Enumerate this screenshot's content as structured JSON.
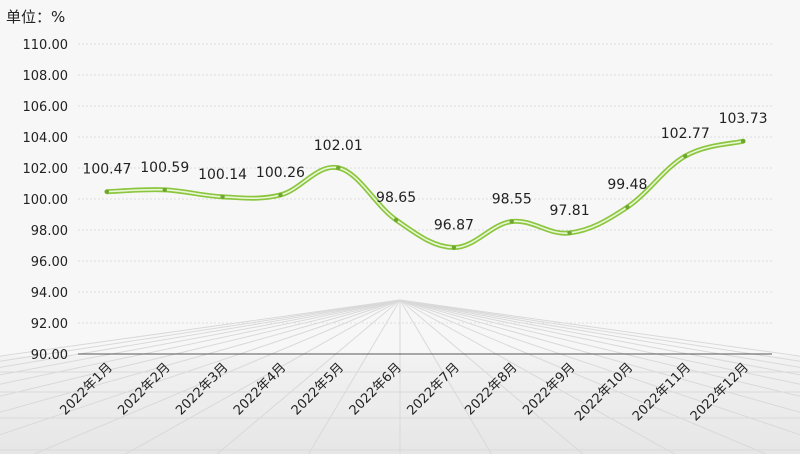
{
  "unit_label": "单位：%",
  "chart_data": {
    "type": "line",
    "title": "",
    "xlabel": "",
    "ylabel": "",
    "ylim": [
      90,
      110
    ],
    "yticks": [
      "90.00",
      "92.00",
      "94.00",
      "96.00",
      "98.00",
      "100.00",
      "102.00",
      "104.00",
      "106.00",
      "108.00",
      "110.00"
    ],
    "categories": [
      "2022年1月",
      "2022年2月",
      "2022年3月",
      "2022年4月",
      "2022年5月",
      "2022年6月",
      "2022年7月",
      "2022年8月",
      "2022年9月",
      "2022年10月",
      "2022年11月",
      "2022年12月"
    ],
    "values": [
      100.47,
      100.59,
      100.14,
      100.26,
      102.01,
      98.65,
      96.87,
      98.55,
      97.81,
      99.48,
      102.77,
      103.73
    ],
    "data_labels": [
      "100.47",
      "100.59",
      "100.14",
      "100.26",
      "102.01",
      "98.65",
      "96.87",
      "98.55",
      "97.81",
      "99.48",
      "102.77",
      "103.73"
    ],
    "line_color": "#8cc63f",
    "grid": true,
    "legend": "none"
  }
}
